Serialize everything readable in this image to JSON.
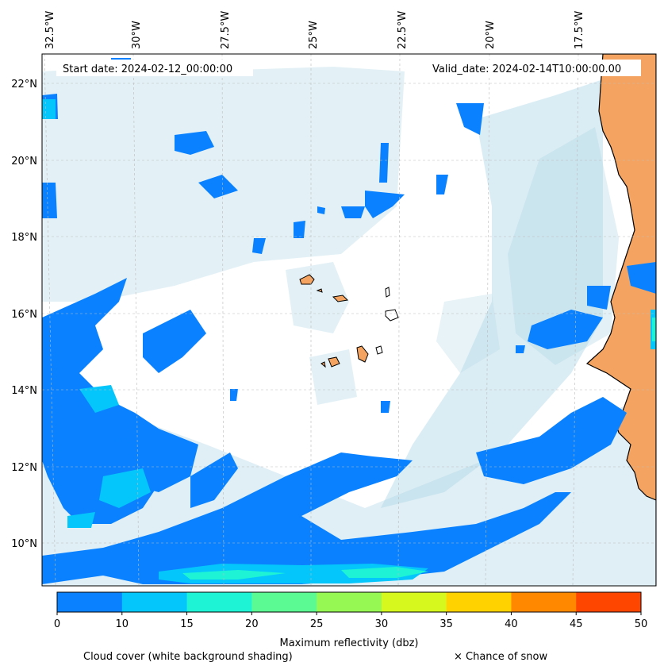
{
  "header": {
    "start_date": "Start date: 2024-02-12_00:00:00",
    "valid_date": "Valid_date: 2024-02-14T10:00:00.00"
  },
  "axes": {
    "lon_labels": [
      "32.5°W",
      "30°W",
      "27.5°W",
      "25°W",
      "22.5°W",
      "20°W",
      "17.5°W"
    ],
    "lat_labels": [
      "22°N",
      "20°N",
      "18°N",
      "16°N",
      "14°N",
      "12°N",
      "10°N"
    ]
  },
  "colorbar": {
    "ticks": [
      "0",
      "10",
      "15",
      "20",
      "25",
      "30",
      "35",
      "40",
      "45",
      "50"
    ],
    "colors": [
      "#0a82ff",
      "#04c6fa",
      "#1ef3d6",
      "#5cfa92",
      "#96f852",
      "#d6f81e",
      "#ffd200",
      "#ff8800",
      "#ff4600"
    ],
    "label": "Maximum reflectivity (dbz)"
  },
  "legend": {
    "cloud_cover": "Cloud cover (white background shading)",
    "snow": "× Chance of snow"
  },
  "colors": {
    "land": "#f4a460",
    "cloud_shade": "#b0d8e6",
    "reflectivity_low": "#0a82ff",
    "reflectivity_mid": "#04c6fa",
    "reflectivity_high": "#1ef3d6"
  }
}
